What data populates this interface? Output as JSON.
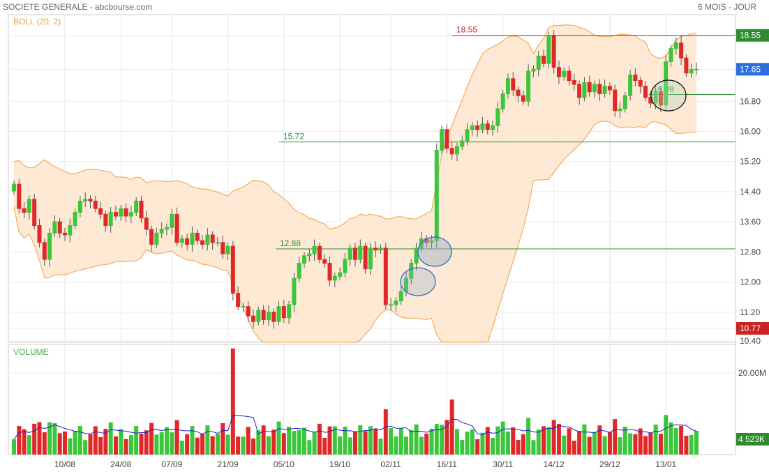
{
  "header": {
    "title": "SOCIETE GENERALE - abcbourse.com",
    "period": "6 MOIS - JOUR"
  },
  "colors": {
    "up": "#3cc63c",
    "down": "#e02828",
    "band_fill": "#fde5cc",
    "band_line": "#f0a040",
    "level_line": "#2e8b2e",
    "resistance_line": "#cc2222",
    "volume_avg": "#1f1fd0",
    "last_price_tag": "#2a6ee0",
    "high_tag": "#2e8b2e",
    "low_tag": "#cc2222"
  },
  "chart_data": [
    {
      "type": "candlestick",
      "title": "BOLL (20, 2)",
      "x_ticks": [
        "10/08",
        "24/08",
        "07/09",
        "21/09",
        "05/10",
        "19/10",
        "02/11",
        "16/11",
        "30/11",
        "14/12",
        "29/12",
        "13/01"
      ],
      "y_ticks": [
        "18.55",
        "17.65",
        "16.80",
        "16.00",
        "15.20",
        "14.40",
        "13.60",
        "12.80",
        "12.00",
        "11.20",
        "10.77",
        "10.40"
      ],
      "ylim": [
        10.4,
        19.1
      ],
      "current_price": "17.65",
      "range_high": "18.55",
      "range_low": "10.77",
      "levels": [
        {
          "label": "18.55",
          "value": 18.55,
          "kind": "resistance"
        },
        {
          "label": "15.72",
          "value": 15.72,
          "kind": "support"
        },
        {
          "label": "12.88",
          "value": 12.88,
          "kind": "support"
        },
        {
          "label": "16.98",
          "value": 16.98,
          "kind": "support"
        }
      ],
      "close": [
        14.6,
        13.95,
        13.85,
        14.2,
        13.5,
        13.05,
        12.6,
        13.3,
        13.6,
        13.3,
        13.25,
        13.5,
        13.85,
        14.15,
        14.2,
        14.15,
        13.95,
        13.8,
        13.5,
        13.85,
        13.75,
        13.95,
        13.75,
        13.85,
        14.15,
        13.7,
        13.4,
        13.0,
        13.3,
        13.4,
        13.45,
        13.8,
        13.05,
        13.15,
        13.0,
        13.3,
        13.1,
        13.0,
        13.25,
        13.05,
        13.05,
        12.75,
        12.95,
        11.7,
        11.35,
        11.35,
        11.1,
        10.95,
        11.25,
        11.0,
        11.2,
        10.95,
        11.35,
        11.05,
        11.4,
        12.1,
        12.5,
        12.7,
        12.75,
        12.95,
        12.6,
        12.5,
        12.05,
        12.15,
        12.25,
        12.6,
        12.9,
        12.6,
        12.95,
        12.35,
        12.9,
        12.85,
        12.9,
        11.4,
        11.4,
        11.5,
        11.75,
        12.1,
        12.5,
        12.9,
        13.15,
        13.05,
        13.1,
        15.5,
        16.05,
        15.55,
        15.4,
        15.6,
        15.75,
        16.05,
        16.15,
        16.05,
        16.2,
        16.05,
        16.15,
        16.6,
        17.0,
        17.4,
        17.1,
        16.95,
        16.8,
        17.6,
        17.65,
        18.0,
        17.8,
        18.55,
        17.7,
        17.45,
        17.6,
        17.35,
        17.25,
        16.9,
        17.3,
        17.05,
        17.25,
        17.0,
        17.2,
        17.1,
        16.55,
        16.6,
        16.95,
        17.5,
        17.35,
        17.2,
        16.9,
        16.75,
        17.05,
        16.7,
        17.85,
        18.2,
        18.35,
        17.95,
        17.55,
        17.65,
        17.65
      ],
      "volume_ylim": [
        0,
        27
      ],
      "volume_tick": "20.00M",
      "volume_last": "4 523K",
      "volume_label": "VOLUME"
    }
  ]
}
